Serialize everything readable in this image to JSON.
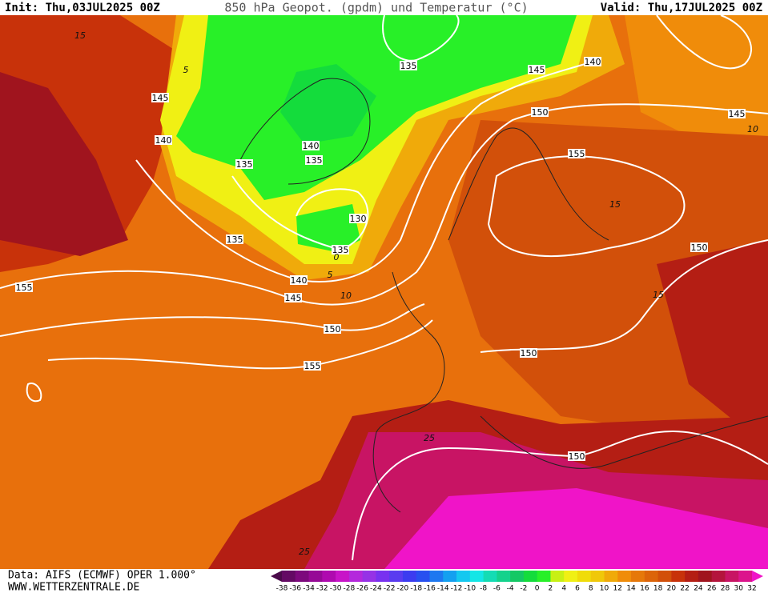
{
  "header": {
    "init": "Init: Thu,03JUL2025 00Z",
    "title": "850 hPa Geopot. (gpdm) und Temperatur (°C)",
    "valid": "Valid: Thu,17JUL2025 00Z"
  },
  "footer": {
    "data": "Data: AIFS (ECMWF) OPER 1.000°",
    "url": "WWW.WETTERZENTRALE.DE"
  },
  "map": {
    "geopotential_labels": [
      "145",
      "140",
      "135",
      "140",
      "135",
      "135",
      "145",
      "140",
      "150",
      "145",
      "155",
      "130",
      "135",
      "135",
      "140",
      "145",
      "150",
      "155",
      "155",
      "150",
      "150",
      "150"
    ],
    "temperature_labels": [
      "15",
      "5",
      "10",
      "15",
      "0",
      "5",
      "10",
      "15",
      "25",
      "25"
    ]
  },
  "colorbar": {
    "ticks": [
      -38,
      -36,
      -34,
      -32,
      -30,
      -28,
      -26,
      -24,
      -22,
      -20,
      -18,
      -16,
      -14,
      -12,
      -10,
      -8,
      -6,
      -4,
      -2,
      0,
      2,
      4,
      6,
      8,
      10,
      12,
      14,
      16,
      18,
      20,
      22,
      24,
      26,
      28,
      30,
      32
    ],
    "colors": [
      "#4a0a4a",
      "#640a64",
      "#7d0a7d",
      "#960a96",
      "#af0aaf",
      "#c814c8",
      "#b428dc",
      "#9632e6",
      "#7832f0",
      "#5a3cf0",
      "#3c3cf0",
      "#2850f0",
      "#1e78f0",
      "#14a0f0",
      "#14c8f0",
      "#14e6e6",
      "#14dcb4",
      "#14d28c",
      "#14c864",
      "#14dc3c",
      "#28f028",
      "#c8f014",
      "#f0f014",
      "#f0dc0a",
      "#f0c80a",
      "#f0aa0a",
      "#f08c0a",
      "#e6780a",
      "#dc640a",
      "#d2500a",
      "#c8320a",
      "#b41e14",
      "#a0141e",
      "#b4143c",
      "#c81464",
      "#dc148c",
      "#f014c8"
    ]
  }
}
